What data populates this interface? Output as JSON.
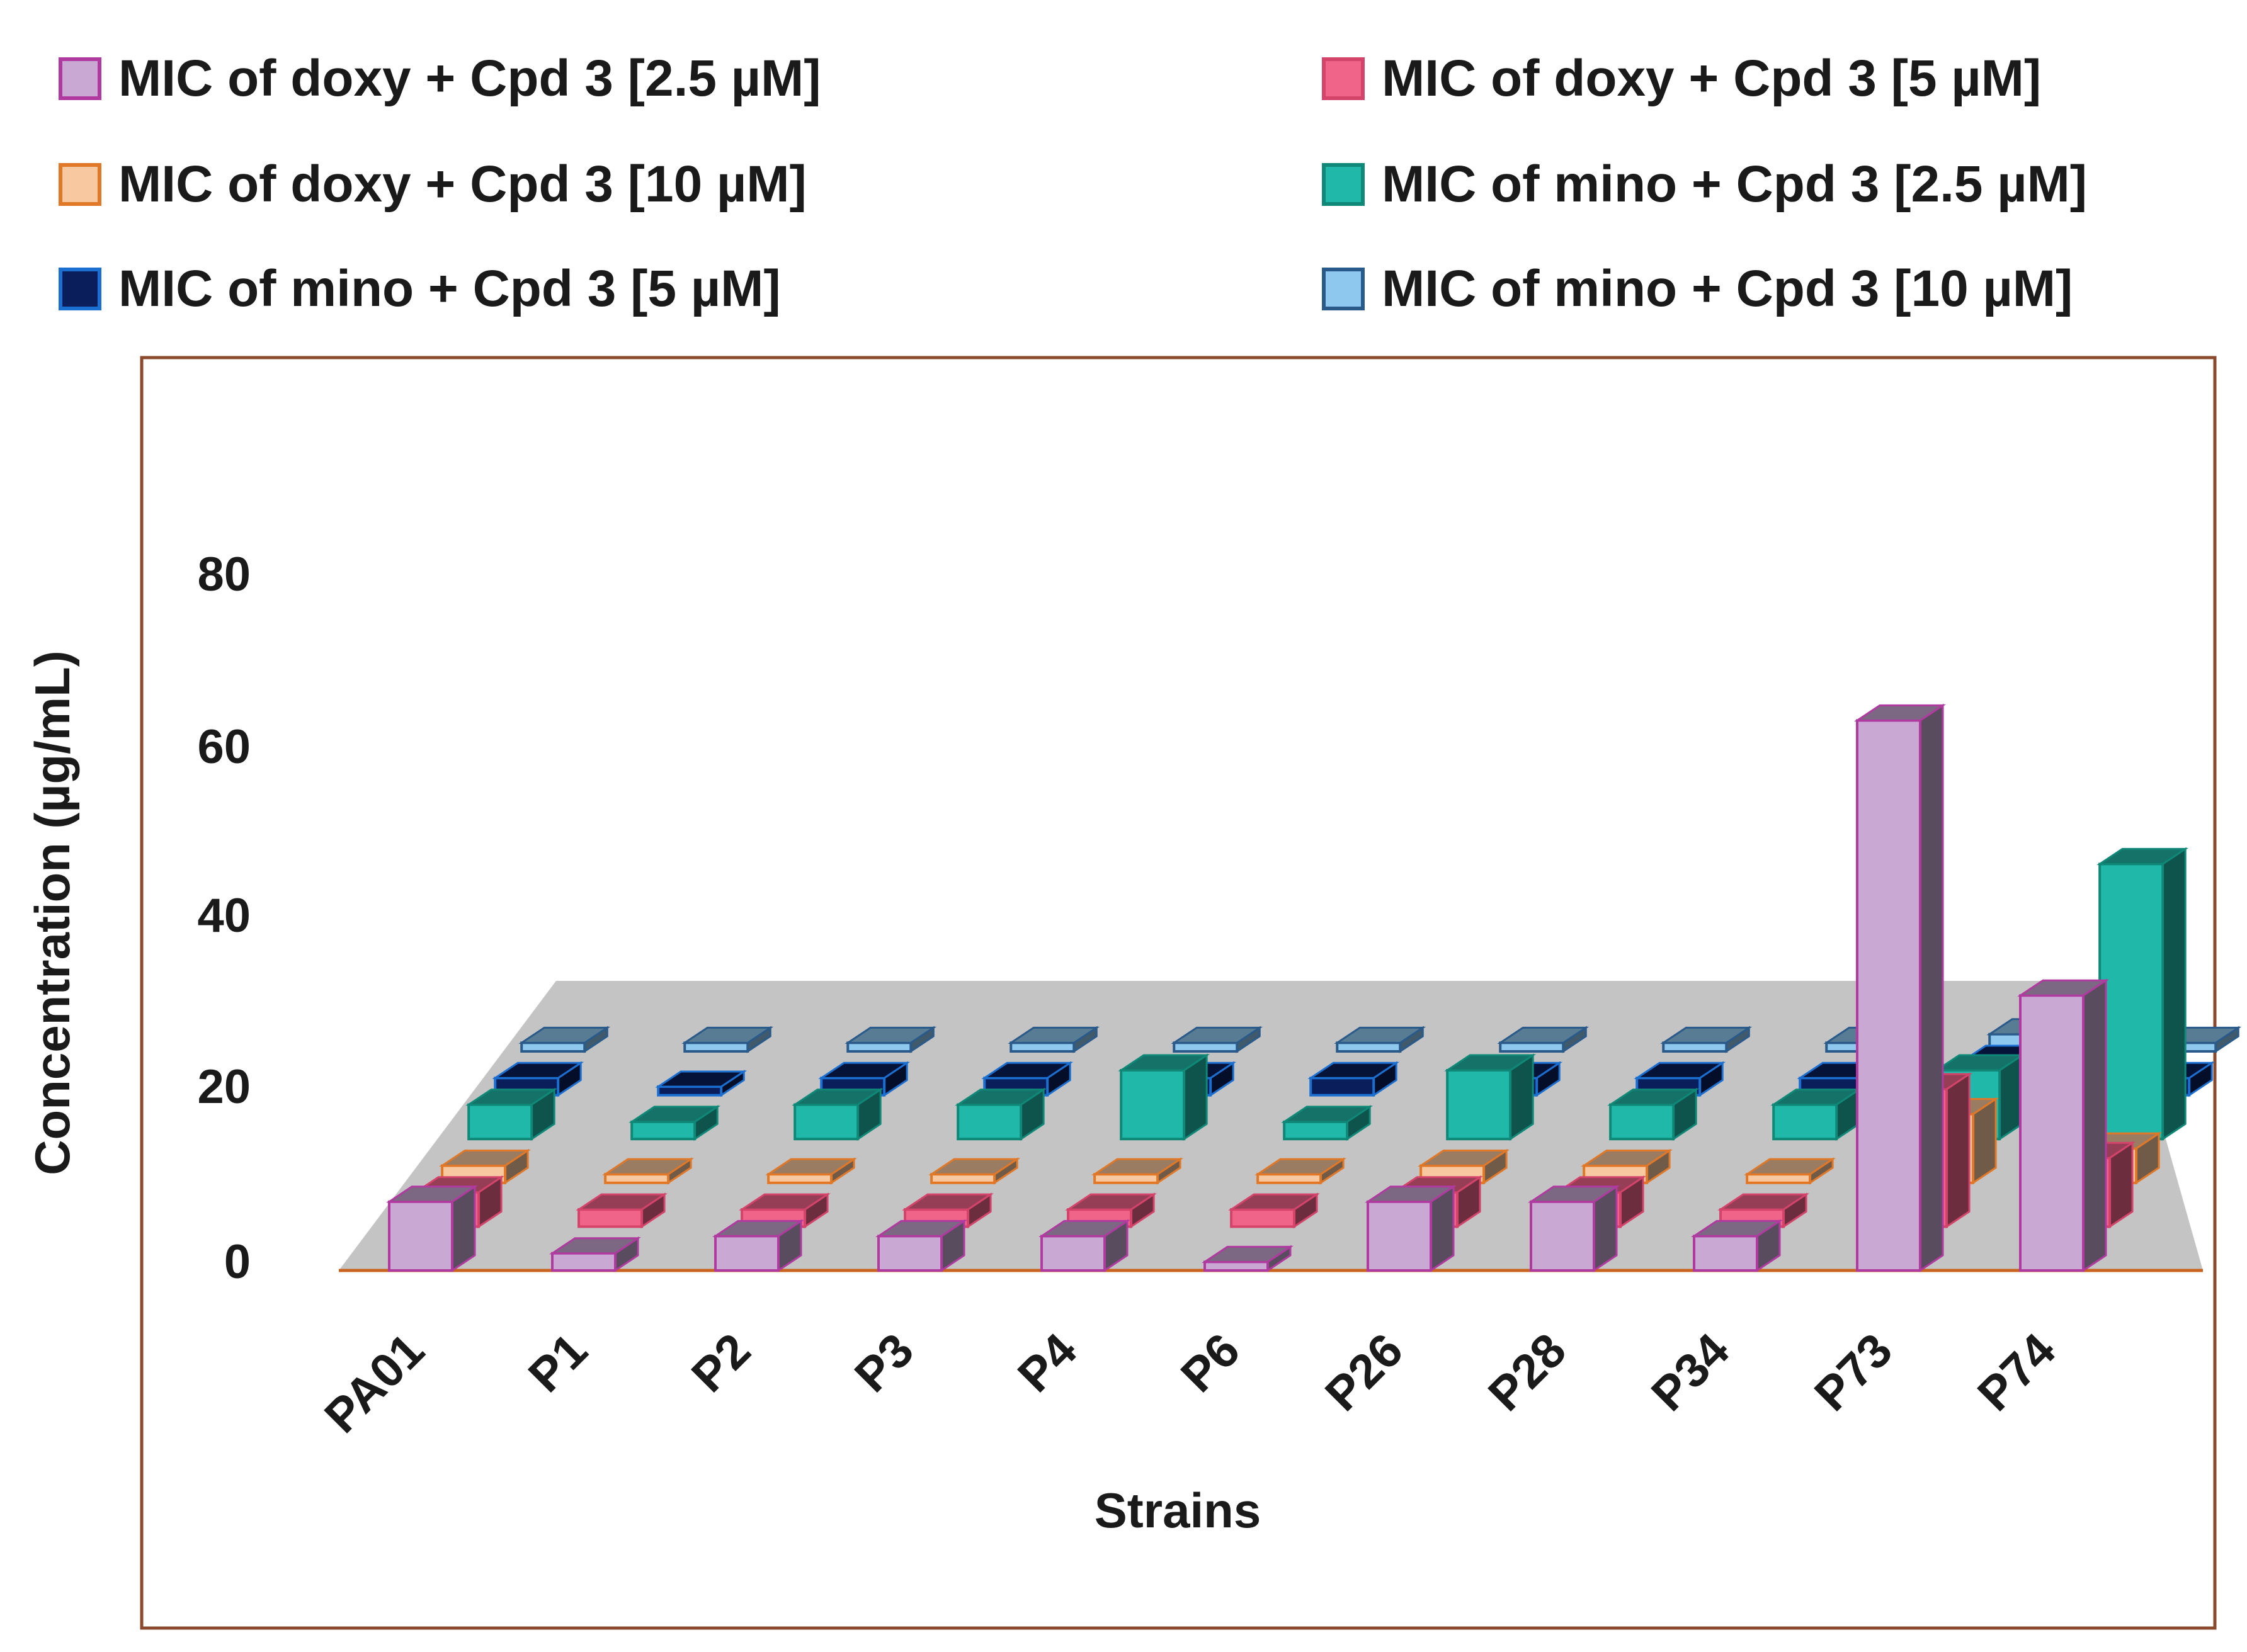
{
  "chart_data": {
    "type": "bar",
    "subtype": "3d-clustered",
    "title": "",
    "xlabel": "Strains",
    "ylabel": "Concentration (µg/mL)",
    "ylim": [
      0,
      80
    ],
    "yticks": [
      0,
      20,
      40,
      60,
      80
    ],
    "grid": false,
    "legend_position": "top",
    "categories": [
      "PA01",
      "P1",
      "P2",
      "P3",
      "P4",
      "P6",
      "P26",
      "P28",
      "P34",
      "P73",
      "P74"
    ],
    "series": [
      {
        "name": "MIC of doxy + Cpd 3 [2.5 µM]",
        "color": "#c9a8d4",
        "edge": "#b03aa0",
        "values": [
          8,
          2,
          4,
          4,
          4,
          1,
          8,
          8,
          4,
          64,
          32
        ]
      },
      {
        "name": "MIC of doxy + Cpd 3 [5 µM]",
        "color": "#f0648a",
        "edge": "#d4436a",
        "values": [
          4,
          2,
          2,
          2,
          2,
          2,
          4,
          4,
          2,
          16,
          8
        ]
      },
      {
        "name": "MIC of doxy + Cpd 3 [10 µM]",
        "color": "#f8c8a0",
        "edge": "#e07828",
        "values": [
          2,
          1,
          1,
          1,
          1,
          1,
          2,
          2,
          1,
          8,
          4
        ]
      },
      {
        "name": "MIC of mino + Cpd 3 [2.5 µM]",
        "color": "#20b8a8",
        "edge": "#108878",
        "values": [
          4,
          2,
          4,
          4,
          8,
          2,
          8,
          4,
          4,
          8,
          32
        ]
      },
      {
        "name": "MIC of mino +  Cpd 3 [5 µM]",
        "color": "#0a1e5c",
        "edge": "#1a6fd0",
        "values": [
          2,
          1,
          2,
          2,
          2,
          2,
          2,
          2,
          2,
          4,
          2
        ]
      },
      {
        "name": "MIC of mino + Cpd 3  [10 µM]",
        "color": "#8ec8ee",
        "edge": "#2a5a8a",
        "values": [
          1,
          1,
          1,
          1,
          1,
          1,
          1,
          1,
          1,
          2,
          1
        ]
      }
    ]
  }
}
